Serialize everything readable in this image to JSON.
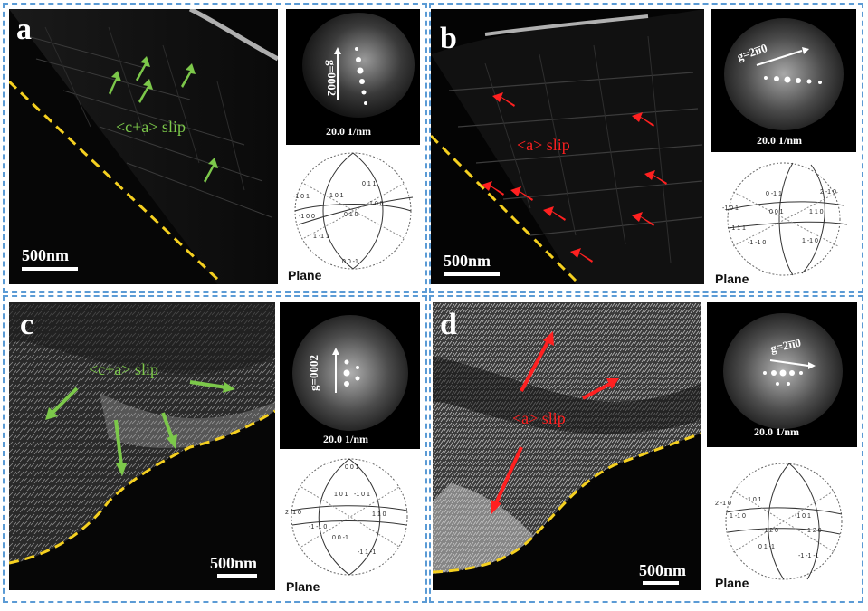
{
  "panels": {
    "a": {
      "letter": "a",
      "scale": "500nm",
      "saed_scale": "20.0 1/nm",
      "g": "g=0002",
      "slip": "<c+a> slip",
      "plane": "Plane",
      "slip_color": "#7cc84a",
      "stereo_labels": [
        "0 1 1",
        "-1 0 1",
        "1 0 1",
        "-1 0 0",
        "1 0 0",
        "0 0 -1",
        "1 -1 1",
        "0 1 0"
      ]
    },
    "b": {
      "letter": "b",
      "scale": "500nm",
      "saed_scale": "20.0 1/nm",
      "g": "g=2īī0",
      "slip": "<a> slip",
      "plane": "Plane",
      "slip_color": "#ff2020",
      "stereo_labels": [
        "0 -1 1",
        "-1 0 1",
        "2 -1 0",
        "1 1 0",
        "0 0 1",
        "-1 1 1",
        "-1 -1 0",
        "1 -1 0"
      ]
    },
    "c": {
      "letter": "c",
      "scale": "500nm",
      "saed_scale": "20.0 1/nm",
      "g": "g=0002",
      "slip": "<c+a> slip",
      "plane": "Plane",
      "slip_color": "#7cc84a",
      "stereo_labels": [
        "0 0 1",
        "1 0 1",
        "2 -1 0",
        "1 1 0",
        "-1 0 1",
        "0 0 -1",
        "-1 1 -1",
        "-1 -1 0"
      ]
    },
    "d": {
      "letter": "d",
      "scale": "500nm",
      "saed_scale": "20.0 1/nm",
      "g": "g=2īī0",
      "slip": "<a> slip",
      "plane": "Plane",
      "slip_color": "#ff2020",
      "stereo_labels": [
        "2 -1 0",
        "1 0 1",
        "-1 0 1",
        "1 -1 0",
        "-1 2 0",
        "1 2 0",
        "-1 -1 -1",
        "0 1 -1"
      ]
    }
  },
  "colors": {
    "border": "#5b9bd5",
    "boundary": "#f5d020",
    "green_arrow": "#7cc84a",
    "red_arrow": "#ff2020"
  }
}
